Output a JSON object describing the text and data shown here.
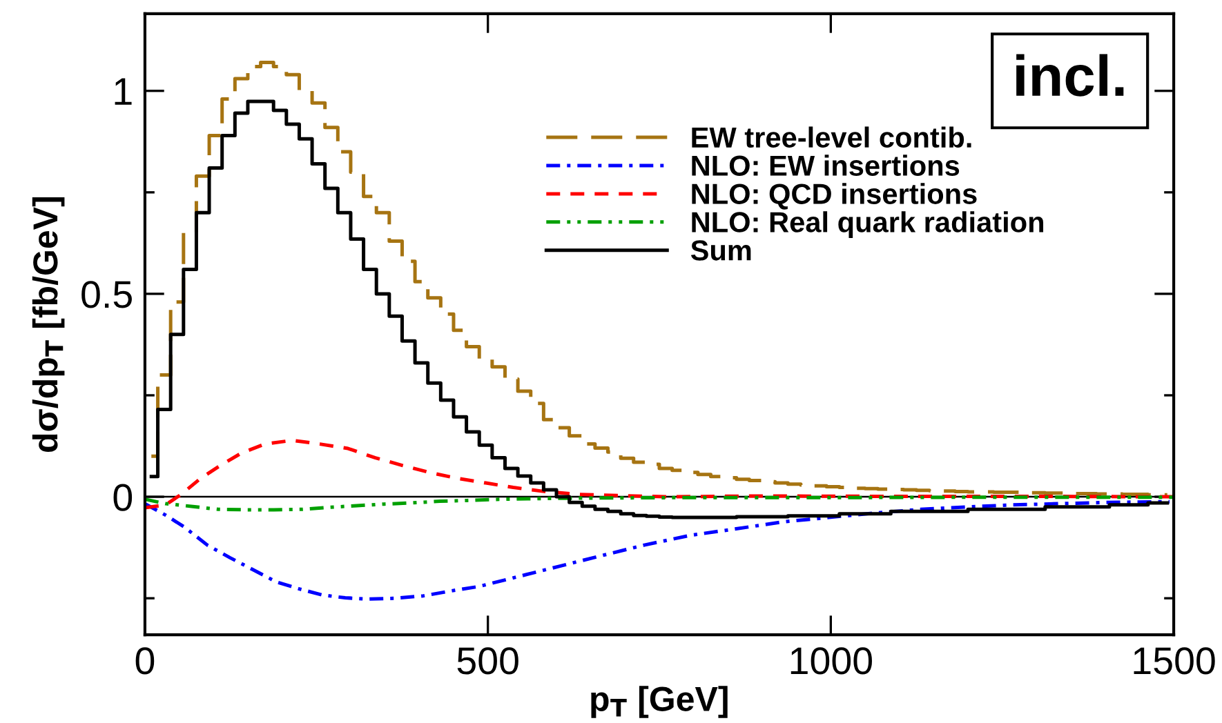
{
  "chart_data": {
    "type": "step",
    "xlabel": "p$_{T}$ [GeV]",
    "ylabel": "dσ/dp$_{T}$ [fb/GeV]",
    "annotations": [
      "incl."
    ],
    "xlim": [
      0,
      1500
    ],
    "xticks": [
      0,
      500,
      1000,
      1500
    ],
    "ylim": [
      -0.34,
      1.19
    ],
    "yticks": [
      {
        "value": -0.25,
        "label": null
      },
      0,
      {
        "value": 0.25,
        "label": null
      },
      0.5,
      {
        "value": 0.75,
        "label": null
      },
      1
    ],
    "ref_lines": [
      {
        "axis": "y",
        "value": 0,
        "color": "#000000",
        "line_style": "solid"
      }
    ],
    "grid": false,
    "legend": "top right",
    "series": [
      {
        "name": "EW tree-level contib.",
        "color": "#a67412",
        "line_style": "long dashed",
        "x": [
          9.375,
          28.125,
          46.875,
          65.625,
          84.375,
          103.125,
          121.875,
          140.625,
          159.375,
          178.125,
          196.875,
          215.625,
          234.375,
          253.125,
          271.875,
          290.625,
          309.375,
          328.125,
          346.875,
          365.625,
          384.375,
          403.125,
          421.875,
          440.625,
          459.375,
          478.125,
          496.875,
          515.625,
          534.375,
          553.125,
          571.875,
          590.625,
          609.375,
          628.125,
          646.875,
          665.625,
          684.375,
          703.125,
          721.875,
          740.625,
          759.375,
          778.125,
          796.875,
          815.625,
          834.375,
          853.125,
          871.875,
          890.625,
          909.375,
          928.125,
          946.875,
          965.625,
          984.375,
          1003.125,
          1021.875,
          1040.625,
          1059.375,
          1078.125,
          1096.875,
          1115.625,
          1134.375,
          1153.125,
          1171.875,
          1190.625,
          1209.375,
          1228.125,
          1246.875,
          1265.625,
          1284.375,
          1303.125,
          1321.875,
          1340.625,
          1359.375,
          1378.125,
          1396.875,
          1415.625,
          1434.375,
          1453.125,
          1471.875,
          1490.625
        ],
        "values": [
          0.1,
          0.3,
          0.48,
          0.65,
          0.79,
          0.89,
          0.98,
          1.03,
          1.06,
          1.07,
          1.06,
          1.04,
          1.0,
          0.97,
          0.91,
          0.85,
          0.8,
          0.74,
          0.7,
          0.63,
          0.58,
          0.53,
          0.49,
          0.45,
          0.41,
          0.37,
          0.34,
          0.32,
          0.29,
          0.26,
          0.23,
          0.19,
          0.17,
          0.15,
          0.13,
          0.12,
          0.11,
          0.095,
          0.085,
          0.08,
          0.07,
          0.065,
          0.06,
          0.055,
          0.05,
          0.047,
          0.043,
          0.04,
          0.037,
          0.034,
          0.031,
          0.029,
          0.027,
          0.025,
          0.023,
          0.021,
          0.02,
          0.019,
          0.018,
          0.017,
          0.016,
          0.015,
          0.014,
          0.013,
          0.012,
          0.012,
          0.011,
          0.011,
          0.01,
          0.01,
          0.009,
          0.009,
          0.008,
          0.008,
          0.007,
          0.007,
          0.006,
          0.006,
          0.005,
          0.005
        ]
      },
      {
        "name": "NLO: EW insertions",
        "type": "line",
        "color": "#0000ff",
        "line_style": "dash-dot",
        "x": [
          0,
          30,
          57,
          91,
          124,
          158,
          192,
          225,
          259,
          292,
          326,
          366,
          406,
          446,
          487,
          527,
          567,
          607,
          661,
          728,
          795,
          862,
          929,
          997,
          1064,
          1131,
          1198,
          1265,
          1332,
          1399,
          1494
        ],
        "values": [
          -0.017,
          -0.045,
          -0.074,
          -0.119,
          -0.15,
          -0.18,
          -0.21,
          -0.227,
          -0.242,
          -0.249,
          -0.252,
          -0.25,
          -0.244,
          -0.232,
          -0.221,
          -0.204,
          -0.187,
          -0.17,
          -0.147,
          -0.119,
          -0.095,
          -0.079,
          -0.062,
          -0.051,
          -0.04,
          -0.031,
          -0.025,
          -0.02,
          -0.017,
          -0.014,
          -0.012
        ]
      },
      {
        "name": "NLO: QCD insertions",
        "type": "line",
        "color": "#ff0000",
        "line_style": "dashed",
        "x": [
          0,
          30,
          53,
          81,
          107,
          141,
          175,
          215,
          255,
          296,
          336,
          376,
          417,
          457,
          497,
          537,
          578,
          631,
          692,
          759,
          900,
          1100,
          1300,
          1500
        ],
        "values": [
          -0.027,
          -0.02,
          0.006,
          0.045,
          0.074,
          0.108,
          0.13,
          0.139,
          0.13,
          0.119,
          0.096,
          0.077,
          0.059,
          0.045,
          0.034,
          0.023,
          0.014,
          0.006,
          0.003,
          0.0,
          0.002,
          0.001,
          0.001,
          0.0
        ]
      },
      {
        "name": "NLO: Real quark radiation",
        "type": "line",
        "color": "#00a000",
        "line_style": "dash-dot-dot",
        "x": [
          0,
          30,
          70,
          107,
          148,
          188,
          228,
          269,
          309,
          349,
          389,
          430,
          470,
          524,
          591,
          658,
          792,
          1000,
          1250,
          1500
        ],
        "values": [
          -0.006,
          -0.017,
          -0.024,
          -0.031,
          -0.032,
          -0.032,
          -0.031,
          -0.026,
          -0.022,
          -0.018,
          -0.015,
          -0.011,
          -0.009,
          -0.006,
          -0.004,
          -0.003,
          -0.002,
          -0.002,
          -0.001,
          -0.001
        ]
      },
      {
        "name": "Sum",
        "color": "#000000",
        "line_style": "solid",
        "x": [
          9.375,
          28.125,
          46.875,
          65.625,
          84.375,
          103.125,
          121.875,
          140.625,
          159.375,
          178.125,
          196.875,
          215.625,
          234.375,
          253.125,
          271.875,
          290.625,
          309.375,
          328.125,
          346.875,
          365.625,
          384.375,
          403.125,
          421.875,
          440.625,
          459.375,
          478.125,
          496.875,
          515.625,
          534.375,
          553.125,
          571.875,
          590.625,
          609.375,
          628.125,
          646.875,
          665.625,
          684.375,
          703.125,
          721.875,
          740.625,
          759.375,
          778.125,
          796.875,
          815.625,
          834.375,
          853.125,
          871.875,
          890.625,
          909.375,
          928.125,
          946.875,
          965.625,
          984.375,
          1003.125,
          1021.875,
          1040.625,
          1059.375,
          1078.125,
          1096.875,
          1115.625,
          1134.375,
          1153.125,
          1171.875,
          1190.625,
          1209.375,
          1228.125,
          1246.875,
          1265.625,
          1284.375,
          1303.125,
          1321.875,
          1340.625,
          1359.375,
          1378.125,
          1396.875,
          1415.625,
          1434.375,
          1453.125,
          1471.875,
          1490.625
        ],
        "values": [
          0.05,
          0.215,
          0.4,
          0.56,
          0.7,
          0.81,
          0.89,
          0.945,
          0.974,
          0.974,
          0.952,
          0.918,
          0.882,
          0.82,
          0.76,
          0.7,
          0.635,
          0.56,
          0.5,
          0.445,
          0.384,
          0.33,
          0.28,
          0.238,
          0.197,
          0.16,
          0.127,
          0.096,
          0.07,
          0.051,
          0.034,
          0.017,
          0.0,
          -0.014,
          -0.023,
          -0.031,
          -0.036,
          -0.042,
          -0.046,
          -0.048,
          -0.05,
          -0.051,
          -0.051,
          -0.051,
          -0.051,
          -0.051,
          -0.049,
          -0.049,
          -0.049,
          -0.049,
          -0.047,
          -0.047,
          -0.047,
          -0.047,
          -0.042,
          -0.042,
          -0.042,
          -0.042,
          -0.036,
          -0.036,
          -0.036,
          -0.036,
          -0.036,
          -0.036,
          -0.031,
          -0.031,
          -0.031,
          -0.031,
          -0.031,
          -0.031,
          -0.025,
          -0.025,
          -0.025,
          -0.025,
          -0.025,
          -0.02,
          -0.02,
          -0.02,
          -0.015,
          -0.015
        ]
      }
    ]
  }
}
